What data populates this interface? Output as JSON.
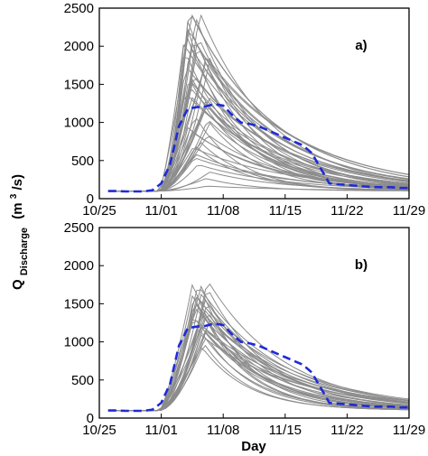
{
  "figure": {
    "ylabel": "Q",
    "ylabel_sub": "Discharge",
    "ylabel_unit": "(m",
    "ylabel_unit_sup": "3",
    "ylabel_unit_end": "/s)",
    "xlabel": "Day",
    "colors": {
      "ensemble": "#8c8c8c",
      "observed": "#1f2bd6"
    }
  },
  "chart_data": [
    {
      "type": "line",
      "panel_label": "a)",
      "x_tick_labels": [
        "10/25",
        "11/01",
        "11/08",
        "11/15",
        "11/22",
        "11/29"
      ],
      "y_tick_labels": [
        "0",
        "500",
        "1000",
        "1500",
        "2000",
        "2500"
      ],
      "xlim": [
        0,
        35
      ],
      "ylim": [
        0,
        2500
      ],
      "x_unit": "days since 10/25",
      "grid": false,
      "ensemble": {
        "member_count": 45,
        "baseline": 100,
        "peak_range": [
          180,
          2500
        ],
        "peak_day_range": [
          9.5,
          12.5
        ]
      },
      "observed": {
        "x": [
          1,
          2,
          3,
          4,
          5,
          6,
          7,
          8,
          9,
          10,
          11,
          12,
          13,
          14,
          15,
          16,
          17,
          18,
          19,
          20,
          21,
          22,
          23,
          24,
          25,
          26,
          27,
          28,
          29,
          30,
          31,
          32,
          33,
          34,
          35
        ],
        "y": [
          100,
          100,
          95,
          95,
          95,
          110,
          200,
          450,
          950,
          1180,
          1200,
          1210,
          1240,
          1220,
          1100,
          1000,
          980,
          950,
          900,
          850,
          800,
          750,
          700,
          600,
          400,
          200,
          190,
          180,
          170,
          160,
          150,
          150,
          150,
          140,
          140
        ]
      }
    },
    {
      "type": "line",
      "panel_label": "b)",
      "x_tick_labels": [
        "10/25",
        "11/01",
        "11/08",
        "11/15",
        "11/22",
        "11/29"
      ],
      "y_tick_labels": [
        "0",
        "500",
        "1000",
        "1500",
        "2000",
        "2500"
      ],
      "xlim": [
        0,
        35
      ],
      "ylim": [
        0,
        2500
      ],
      "x_unit": "days since 10/25",
      "grid": false,
      "ensemble": {
        "member_count": 30,
        "baseline": 100,
        "peak_range": [
          950,
          1800
        ],
        "peak_day_range": [
          10.5,
          12.5
        ]
      },
      "observed": {
        "x": [
          1,
          2,
          3,
          4,
          5,
          6,
          7,
          8,
          9,
          10,
          11,
          12,
          13,
          14,
          15,
          16,
          17,
          18,
          19,
          20,
          21,
          22,
          23,
          24,
          25,
          26,
          27,
          28,
          29,
          30,
          31,
          32,
          33,
          34,
          35
        ],
        "y": [
          100,
          100,
          95,
          95,
          95,
          110,
          200,
          450,
          950,
          1180,
          1200,
          1210,
          1240,
          1220,
          1100,
          1000,
          980,
          950,
          900,
          850,
          800,
          750,
          700,
          600,
          400,
          200,
          190,
          180,
          170,
          160,
          150,
          150,
          150,
          140,
          140
        ]
      }
    }
  ]
}
